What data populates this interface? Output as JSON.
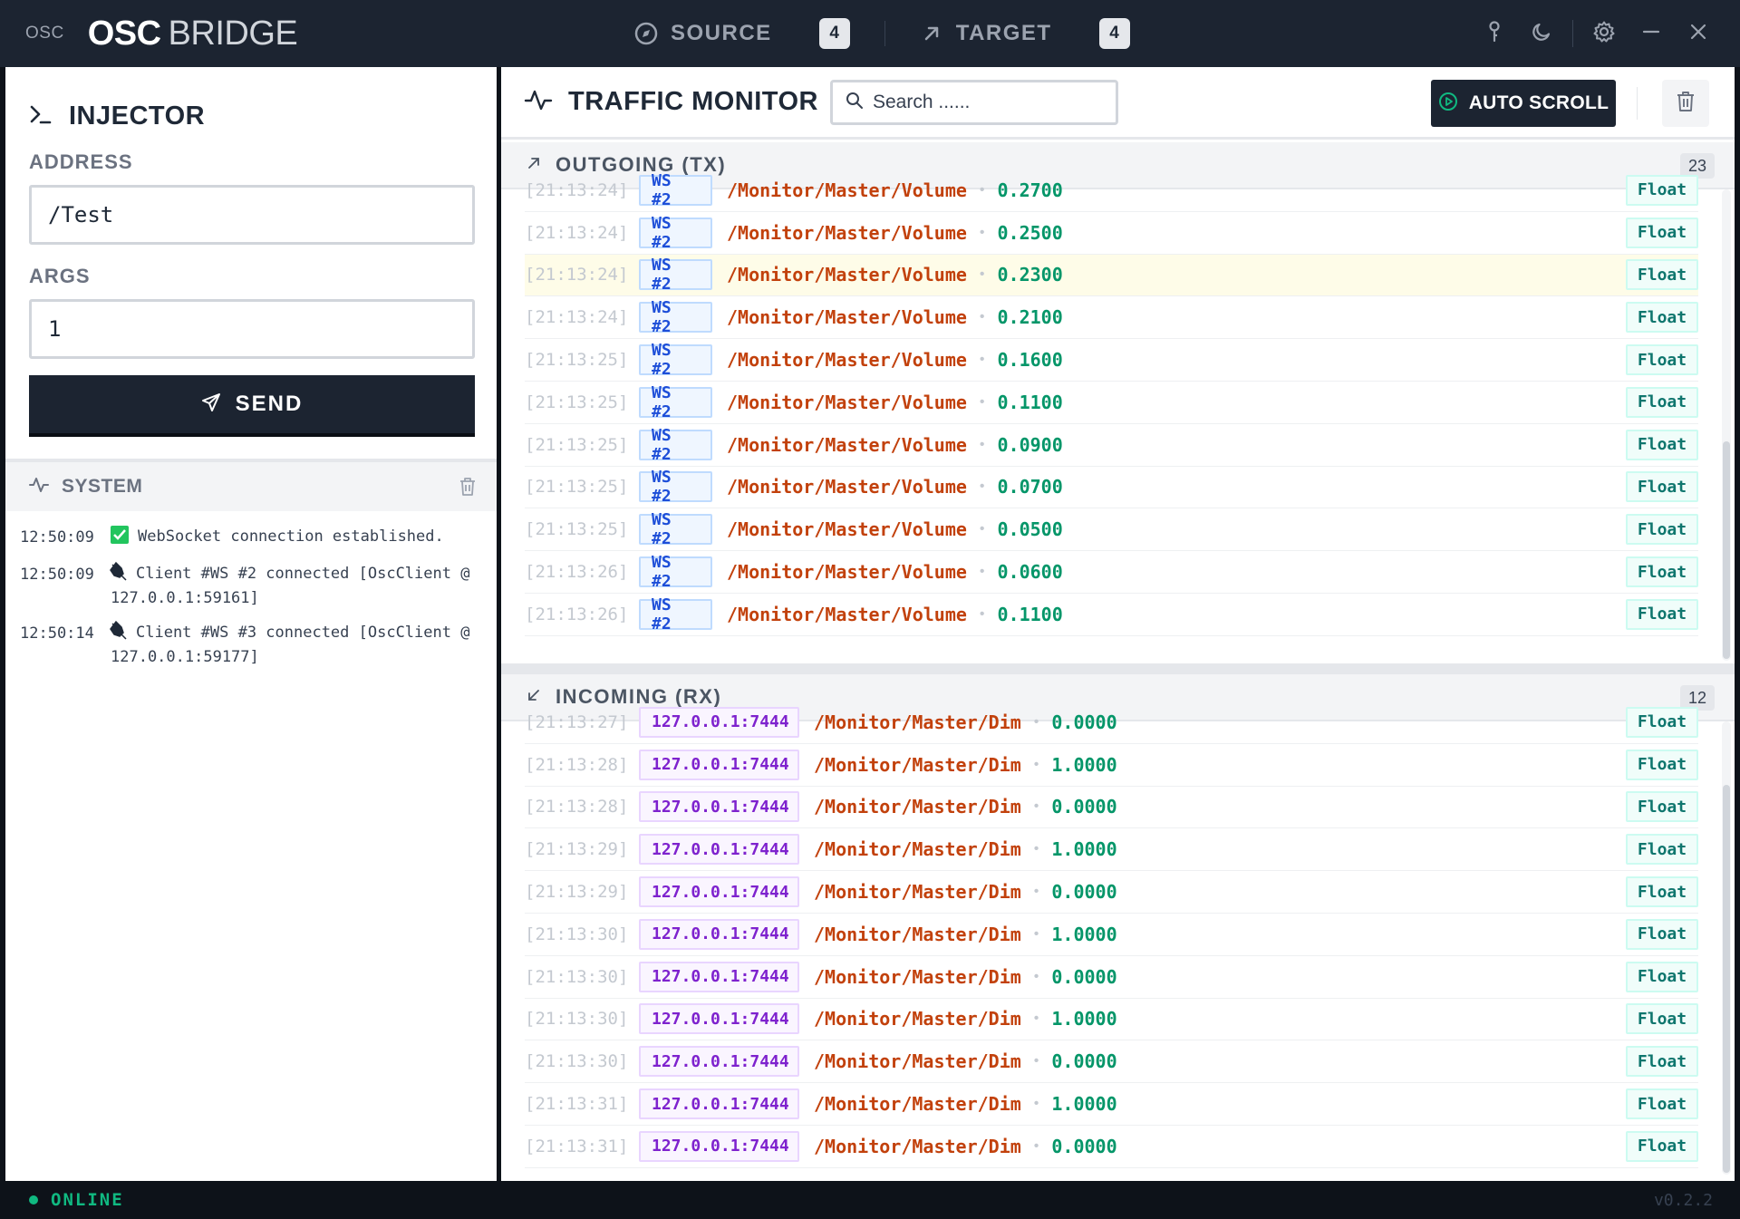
{
  "app": {
    "logo_text": "OSC",
    "title_strong": "OSC",
    "title_light": "BRIDGE"
  },
  "connections": {
    "source": {
      "label": "SOURCE",
      "count": "4"
    },
    "target": {
      "label": "TARGET",
      "count": "4"
    }
  },
  "window_controls": [
    "pin-icon",
    "moon-icon",
    "gear-icon",
    "minimize-icon",
    "close-icon"
  ],
  "injector": {
    "title": "INJECTOR",
    "address_label": "ADDRESS",
    "address_value": "/Test",
    "args_label": "ARGS",
    "args_value": "1",
    "send_label": "SEND"
  },
  "system": {
    "title": "SYSTEM",
    "logs": [
      {
        "time": "12:50:09",
        "icon": "check-icon",
        "message": "WebSocket connection established."
      },
      {
        "time": "12:50:09",
        "icon": "plug-icon",
        "message": "Client #WS #2 connected [OscClient @ 127.0.0.1:59161]"
      },
      {
        "time": "12:50:14",
        "icon": "plug-icon",
        "message": "Client #WS #3 connected [OscClient @ 127.0.0.1:59177]"
      }
    ]
  },
  "monitor": {
    "title": "TRAFFIC MONITOR",
    "search_placeholder": "Search ......",
    "autoscroll_label": "AUTO SCROLL"
  },
  "outgoing": {
    "title": "OUTGOING (TX)",
    "count": "23",
    "rows": [
      {
        "time": "[21:13:24]",
        "source": "WS #2",
        "address": "/Monitor/Master/Volume",
        "value": "0.2700",
        "type": "Float"
      },
      {
        "time": "[21:13:24]",
        "source": "WS #2",
        "address": "/Monitor/Master/Volume",
        "value": "0.2500",
        "type": "Float"
      },
      {
        "time": "[21:13:24]",
        "source": "WS #2",
        "address": "/Monitor/Master/Volume",
        "value": "0.2300",
        "type": "Float"
      },
      {
        "time": "[21:13:24]",
        "source": "WS #2",
        "address": "/Monitor/Master/Volume",
        "value": "0.2100",
        "type": "Float"
      },
      {
        "time": "[21:13:25]",
        "source": "WS #2",
        "address": "/Monitor/Master/Volume",
        "value": "0.1600",
        "type": "Float"
      },
      {
        "time": "[21:13:25]",
        "source": "WS #2",
        "address": "/Monitor/Master/Volume",
        "value": "0.1100",
        "type": "Float"
      },
      {
        "time": "[21:13:25]",
        "source": "WS #2",
        "address": "/Monitor/Master/Volume",
        "value": "0.0900",
        "type": "Float"
      },
      {
        "time": "[21:13:25]",
        "source": "WS #2",
        "address": "/Monitor/Master/Volume",
        "value": "0.0700",
        "type": "Float"
      },
      {
        "time": "[21:13:25]",
        "source": "WS #2",
        "address": "/Monitor/Master/Volume",
        "value": "0.0500",
        "type": "Float"
      },
      {
        "time": "[21:13:26]",
        "source": "WS #2",
        "address": "/Monitor/Master/Volume",
        "value": "0.0600",
        "type": "Float"
      },
      {
        "time": "[21:13:26]",
        "source": "WS #2",
        "address": "/Monitor/Master/Volume",
        "value": "0.1100",
        "type": "Float"
      }
    ]
  },
  "incoming": {
    "title": "INCOMING (RX)",
    "count": "12",
    "rows": [
      {
        "time": "[21:13:27]",
        "source": "127.0.0.1:7444",
        "address": "/Monitor/Master/Dim",
        "value": "0.0000",
        "type": "Float"
      },
      {
        "time": "[21:13:28]",
        "source": "127.0.0.1:7444",
        "address": "/Monitor/Master/Dim",
        "value": "1.0000",
        "type": "Float"
      },
      {
        "time": "[21:13:28]",
        "source": "127.0.0.1:7444",
        "address": "/Monitor/Master/Dim",
        "value": "0.0000",
        "type": "Float"
      },
      {
        "time": "[21:13:29]",
        "source": "127.0.0.1:7444",
        "address": "/Monitor/Master/Dim",
        "value": "1.0000",
        "type": "Float"
      },
      {
        "time": "[21:13:29]",
        "source": "127.0.0.1:7444",
        "address": "/Monitor/Master/Dim",
        "value": "0.0000",
        "type": "Float"
      },
      {
        "time": "[21:13:30]",
        "source": "127.0.0.1:7444",
        "address": "/Monitor/Master/Dim",
        "value": "1.0000",
        "type": "Float"
      },
      {
        "time": "[21:13:30]",
        "source": "127.0.0.1:7444",
        "address": "/Monitor/Master/Dim",
        "value": "0.0000",
        "type": "Float"
      },
      {
        "time": "[21:13:30]",
        "source": "127.0.0.1:7444",
        "address": "/Monitor/Master/Dim",
        "value": "1.0000",
        "type": "Float"
      },
      {
        "time": "[21:13:30]",
        "source": "127.0.0.1:7444",
        "address": "/Monitor/Master/Dim",
        "value": "0.0000",
        "type": "Float"
      },
      {
        "time": "[21:13:31]",
        "source": "127.0.0.1:7444",
        "address": "/Monitor/Master/Dim",
        "value": "1.0000",
        "type": "Float"
      },
      {
        "time": "[21:13:31]",
        "source": "127.0.0.1:7444",
        "address": "/Monitor/Master/Dim",
        "value": "0.0000",
        "type": "Float"
      }
    ]
  },
  "status": {
    "text": "ONLINE",
    "version": "v0.2.2"
  },
  "colors": {
    "titlebar": "#1c2431",
    "address": "#c2410c",
    "value": "#059669",
    "ws_badge": "#1d4ed8",
    "ip_badge": "#7e22ce",
    "online": "#10b981",
    "highlight_row": "#fefce8"
  }
}
